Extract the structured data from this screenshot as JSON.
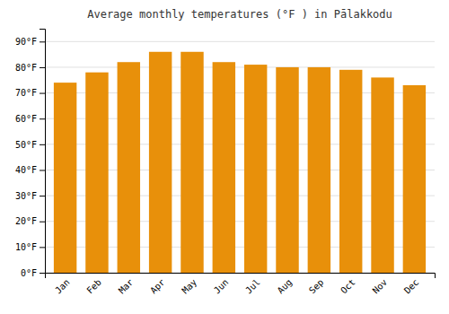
{
  "chart_data": {
    "type": "bar",
    "title": "Average monthly temperatures (°F ) in Pālakkodu",
    "categories": [
      "Jan",
      "Feb",
      "Mar",
      "Apr",
      "May",
      "Jun",
      "Jul",
      "Aug",
      "Sep",
      "Oct",
      "Nov",
      "Dec"
    ],
    "values": [
      74,
      78,
      82,
      86,
      86,
      82,
      81,
      80,
      80,
      79,
      76,
      73
    ],
    "color": "#E8900A",
    "ylim": [
      0,
      95
    ],
    "yticks": [
      {
        "value": 0,
        "label": "0°F"
      },
      {
        "value": 10,
        "label": "10°F"
      },
      {
        "value": 20,
        "label": "20°F"
      },
      {
        "value": 30,
        "label": "30°F"
      },
      {
        "value": 40,
        "label": "40°F"
      },
      {
        "value": 50,
        "label": "50°F"
      },
      {
        "value": 60,
        "label": "60°F"
      },
      {
        "value": 70,
        "label": "70°F"
      },
      {
        "value": 80,
        "label": "80°F"
      },
      {
        "value": 90,
        "label": "90°F"
      }
    ],
    "grid": true
  }
}
